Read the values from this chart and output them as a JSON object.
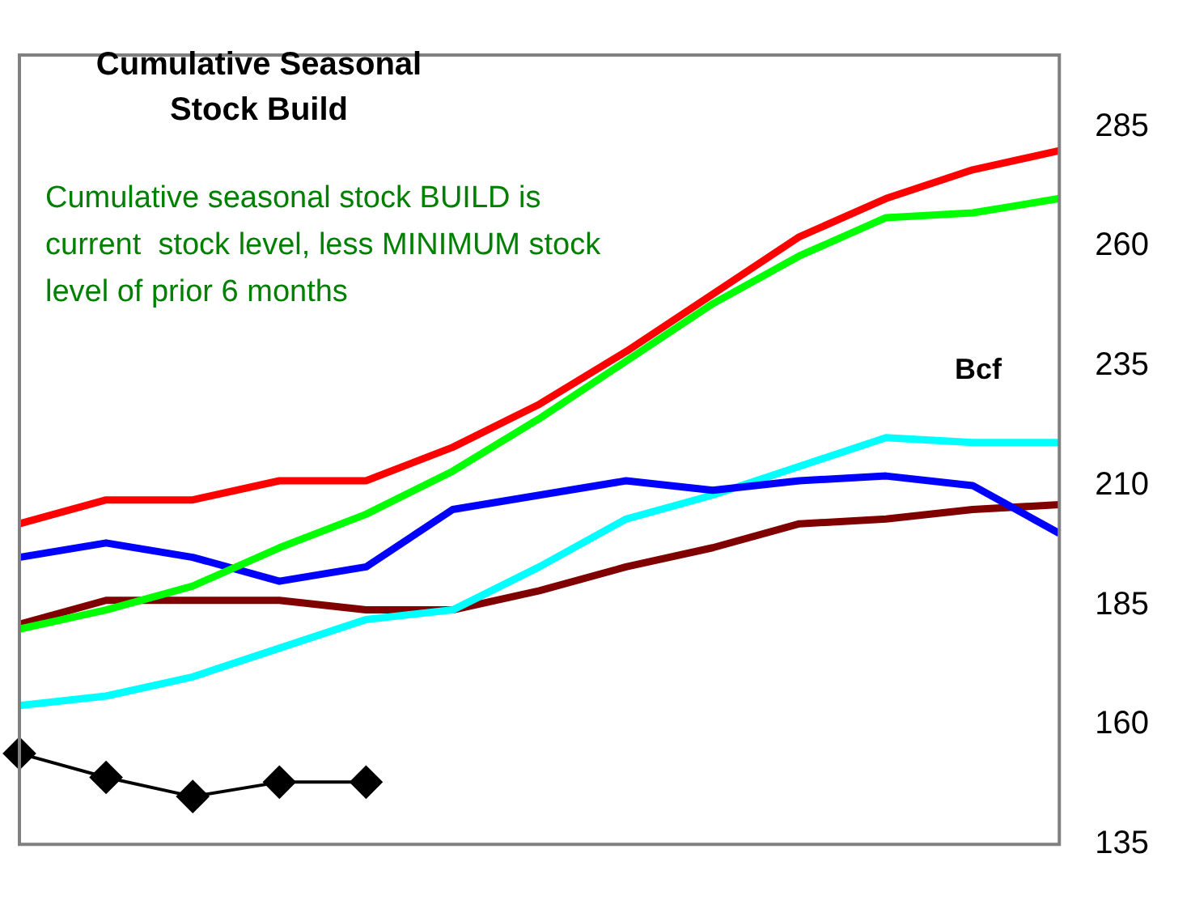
{
  "chart_data": {
    "type": "line",
    "title": "Cumulative Seasonal\nStock Build",
    "ylabel": "Bcf",
    "annotations": [
      "Cumulative seasonal stock BUILD is\ncurrent  stock level, less MINIMUM stock\nlevel of prior 6 months"
    ],
    "categories": [
      null,
      null,
      null,
      null,
      null,
      null,
      null,
      null,
      null,
      null,
      null,
      null,
      null
    ],
    "ylim": [
      135,
      300
    ],
    "yticks": [
      135,
      160,
      185,
      210,
      235,
      260,
      285
    ],
    "grid": false,
    "legend": false,
    "line_style": "solid",
    "series": [
      {
        "color": "#ff0000",
        "marker": "none",
        "values": [
          202,
          207,
          207,
          211,
          211,
          218,
          227,
          238,
          250,
          262,
          270,
          276,
          280
        ]
      },
      {
        "color": "#00ff00",
        "marker": "none",
        "values": [
          180,
          184,
          189,
          197,
          204,
          213,
          224,
          236,
          248,
          258,
          266,
          267,
          270
        ]
      },
      {
        "color": "#0000ff",
        "marker": "none",
        "values": [
          195,
          198,
          195,
          190,
          193,
          205,
          208,
          211,
          209,
          211,
          212,
          210,
          200
        ]
      },
      {
        "color": "#00ffff",
        "marker": "none",
        "values": [
          164,
          166,
          170,
          176,
          182,
          184,
          193,
          203,
          208,
          214,
          220,
          219,
          219
        ]
      },
      {
        "color": "#800000",
        "marker": "none",
        "values": [
          181,
          186,
          186,
          186,
          184,
          184,
          188,
          193,
          197,
          202,
          203,
          205,
          206
        ]
      },
      {
        "color": "#000000",
        "marker": "diamond",
        "values": [
          154,
          149,
          145,
          148,
          148,
          null,
          null,
          null,
          null,
          null,
          null,
          null,
          null
        ]
      }
    ]
  }
}
